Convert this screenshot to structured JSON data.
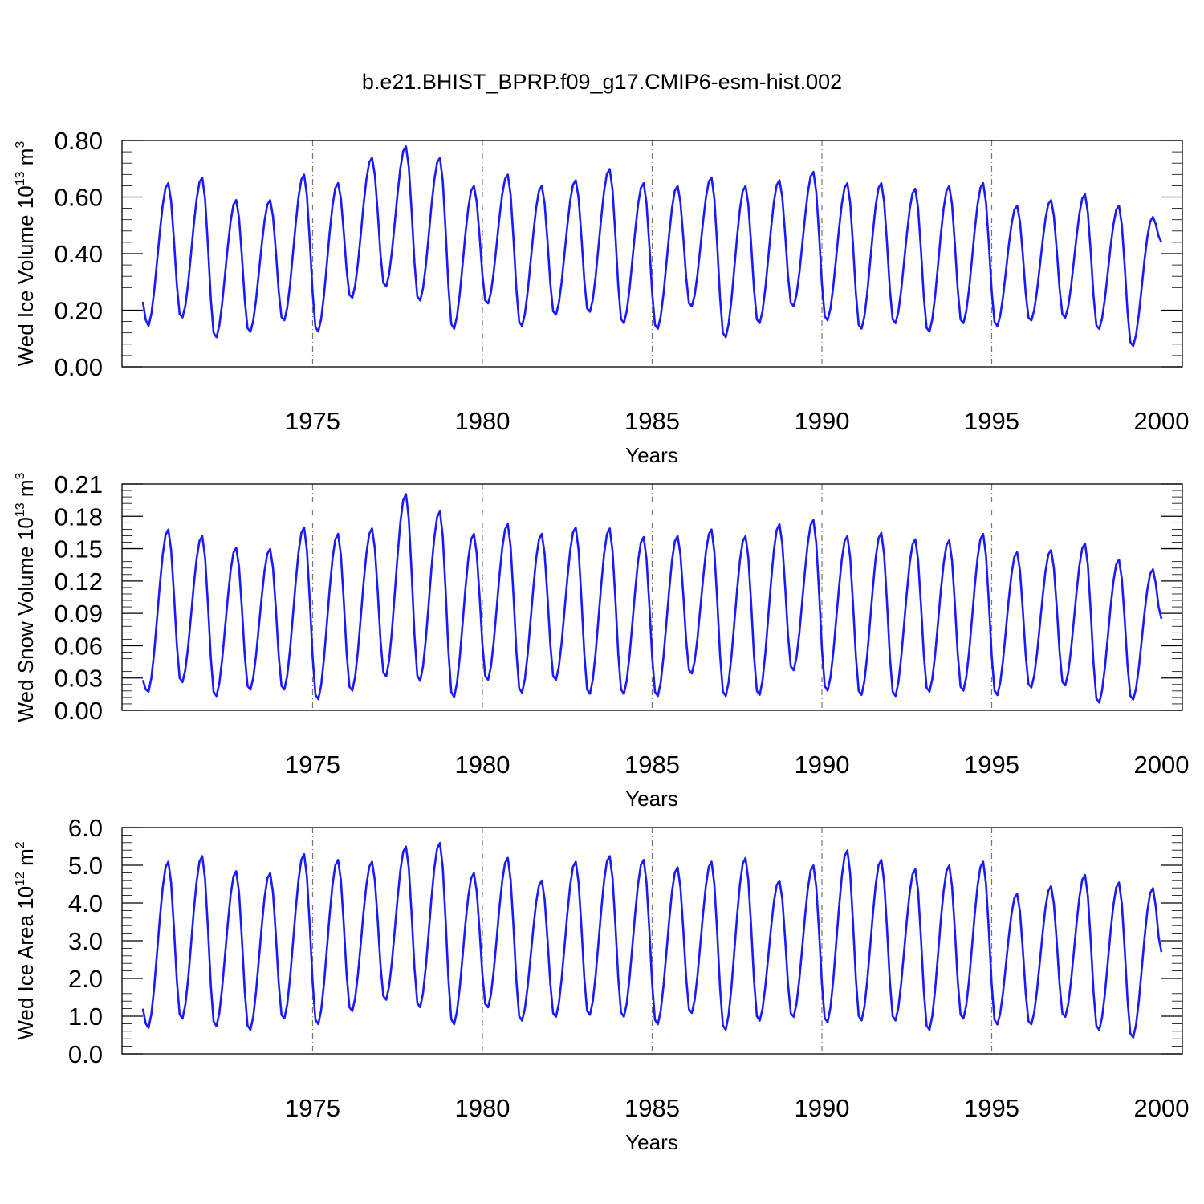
{
  "title": "b.e21.BHIST_BPRP.f09_g17.CMIP6-esm-hist.002",
  "chart_data": [
    {
      "type": "line",
      "name": "ice-volume",
      "ylabel": {
        "main": "Wed Ice Volume 10",
        "exp": "13",
        "unit": " m",
        "unit_exp": "3"
      },
      "xlabel": "Years",
      "xlim": [
        1970,
        2000
      ],
      "ylim": [
        0,
        0.8
      ],
      "yticks": [
        "0.00",
        "0.20",
        "0.40",
        "0.60",
        "0.80"
      ],
      "ytick_values": [
        0,
        0.2,
        0.4,
        0.6,
        0.8
      ],
      "xticks": [
        "1975",
        "1980",
        "1985",
        "1990",
        "1995",
        "2000"
      ],
      "xtick_values": [
        1975,
        1980,
        1985,
        1990,
        1995,
        2000
      ],
      "grid": "vertical dashed at labeled years",
      "color": "#1a1aff",
      "annual_max": [
        0.65,
        0.67,
        0.59,
        0.59,
        0.68,
        0.65,
        0.74,
        0.78,
        0.74,
        0.64,
        0.68,
        0.64,
        0.66,
        0.7,
        0.65,
        0.64,
        0.67,
        0.64,
        0.66,
        0.69,
        0.65,
        0.65,
        0.63,
        0.64,
        0.65,
        0.57,
        0.59,
        0.61,
        0.57,
        0.53
      ],
      "annual_min": [
        0.14,
        0.17,
        0.1,
        0.12,
        0.16,
        0.12,
        0.24,
        0.28,
        0.23,
        0.13,
        0.22,
        0.14,
        0.18,
        0.19,
        0.15,
        0.13,
        0.21,
        0.1,
        0.15,
        0.21,
        0.16,
        0.13,
        0.15,
        0.12,
        0.15,
        0.14,
        0.16,
        0.17,
        0.13,
        0.07
      ],
      "start_value": 0.23,
      "end_value": 0.44
    },
    {
      "type": "line",
      "name": "snow-volume",
      "ylabel": {
        "main": "Wed Snow Volume 10",
        "exp": "13",
        "unit": " m",
        "unit_exp": "3"
      },
      "xlabel": "Years",
      "xlim": [
        1970,
        2000
      ],
      "ylim": [
        0,
        0.21
      ],
      "yticks": [
        "0.00",
        "0.03",
        "0.06",
        "0.09",
        "0.12",
        "0.15",
        "0.18",
        "0.21"
      ],
      "ytick_values": [
        0,
        0.03,
        0.06,
        0.09,
        0.12,
        0.15,
        0.18,
        0.21
      ],
      "xticks": [
        "1975",
        "1980",
        "1985",
        "1990",
        "1995",
        "2000"
      ],
      "xtick_values": [
        1975,
        1980,
        1985,
        1990,
        1995,
        2000
      ],
      "grid": "vertical dashed at labeled years",
      "color": "#1a1aff",
      "annual_max": [
        0.168,
        0.162,
        0.151,
        0.15,
        0.17,
        0.164,
        0.169,
        0.201,
        0.185,
        0.164,
        0.173,
        0.164,
        0.17,
        0.169,
        0.161,
        0.162,
        0.168,
        0.162,
        0.173,
        0.177,
        0.162,
        0.165,
        0.159,
        0.158,
        0.164,
        0.147,
        0.149,
        0.155,
        0.14,
        0.131
      ],
      "annual_min": [
        0.016,
        0.025,
        0.012,
        0.018,
        0.018,
        0.009,
        0.017,
        0.03,
        0.026,
        0.011,
        0.027,
        0.015,
        0.027,
        0.014,
        0.014,
        0.012,
        0.033,
        0.012,
        0.013,
        0.036,
        0.017,
        0.013,
        0.012,
        0.016,
        0.017,
        0.013,
        0.02,
        0.022,
        0.006,
        0.009
      ],
      "start_value": 0.028,
      "end_value": 0.085
    },
    {
      "type": "line",
      "name": "ice-area",
      "ylabel": {
        "main": "Wed Ice Area 10",
        "exp": "12",
        "unit": " m",
        "unit_exp": "2"
      },
      "xlabel": "Years",
      "xlim": [
        1970,
        2000
      ],
      "ylim": [
        0,
        6
      ],
      "yticks": [
        "0.0",
        "1.0",
        "2.0",
        "3.0",
        "4.0",
        "5.0",
        "6.0"
      ],
      "ytick_values": [
        0,
        1,
        2,
        3,
        4,
        5,
        6
      ],
      "xticks": [
        "1975",
        "1980",
        "1985",
        "1990",
        "1995",
        "2000"
      ],
      "xtick_values": [
        1975,
        1980,
        1985,
        1990,
        1995,
        2000
      ],
      "grid": "vertical dashed at labeled years",
      "color": "#1a1aff",
      "annual_max": [
        5.1,
        5.25,
        4.85,
        4.8,
        5.3,
        5.15,
        5.1,
        5.5,
        5.6,
        4.8,
        5.2,
        4.6,
        5.1,
        5.25,
        5.15,
        4.95,
        5.1,
        5.2,
        4.6,
        5.0,
        5.4,
        5.15,
        4.9,
        5.0,
        5.1,
        4.25,
        4.45,
        4.75,
        4.55,
        4.4
      ],
      "annual_min": [
        0.65,
        0.9,
        0.7,
        0.6,
        0.9,
        0.75,
        1.1,
        1.4,
        1.2,
        0.75,
        1.2,
        0.85,
        0.95,
        1.0,
        0.95,
        0.75,
        1.05,
        0.6,
        0.85,
        0.95,
        0.8,
        0.85,
        0.85,
        0.6,
        0.9,
        0.75,
        0.75,
        0.95,
        0.6,
        0.4
      ],
      "start_value": 1.2,
      "end_value": 2.7
    }
  ]
}
